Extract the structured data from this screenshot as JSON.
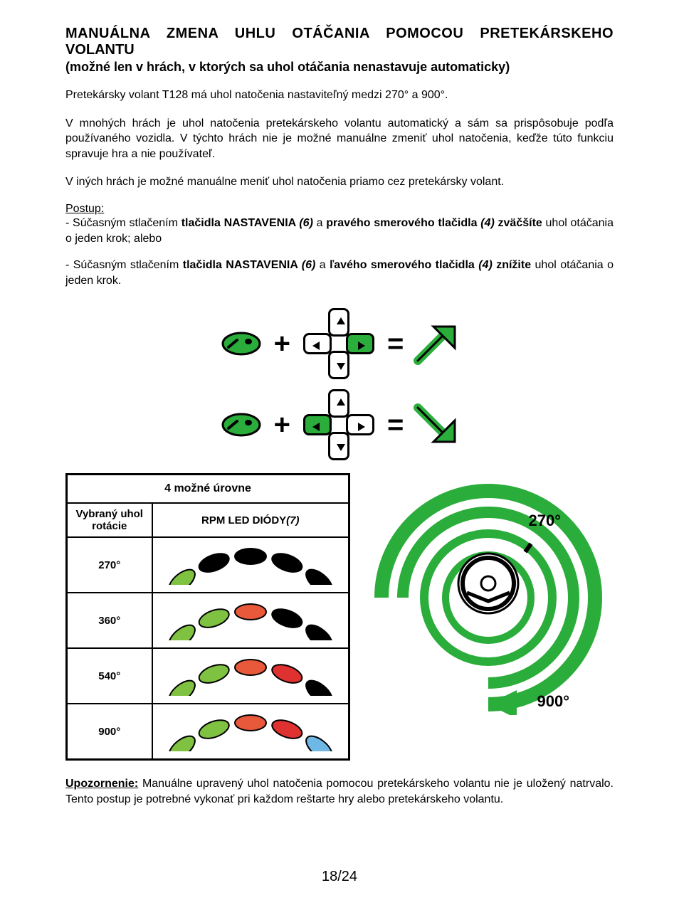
{
  "title_line1": "MANUÁLNA ZMENA UHLU OTÁČANIA POMOCOU PRETEKÁRSKEHO",
  "title_line2": "VOLANTU",
  "subtitle": "(možné len v hrách, v ktorých sa uhol otáčania nenastavuje automaticky)",
  "para1": "Pretekársky volant T128 má uhol natočenia nastaviteľný medzi 270° a 900°.",
  "para2": "V mnohých hrách je uhol natočenia pretekárskeho volantu automatický a sám sa prispôsobuje podľa používaného vozidla. V týchto hrách nie je možné manuálne zmeniť uhol natočenia, keďže túto funkciu spravuje hra a nie používateľ.",
  "para3": "V iných hrách je možné manuálne meniť uhol natočenia priamo cez pretekársky volant.",
  "postup_label": "Postup:",
  "step1_pre": "- Súčasným stlačením ",
  "step1_b1": "tlačidla NASTAVENIA ",
  "step1_i1": "(6)",
  "step1_mid": " a ",
  "step1_b2": "pravého smerového tlačidla ",
  "step1_i2": "(4)",
  "step1_b3": " zväčšíte",
  "step1_post": " uhol otáčania o jeden krok; alebo",
  "step2_pre": "- Súčasným stlačením ",
  "step2_b1": "tlačidla NASTAVENIA ",
  "step2_i1": "(6)",
  "step2_mid": " a ",
  "step2_b2": "ľavého smerového tlačidla ",
  "step2_i2": "(4)",
  "step2_b3": " znížite",
  "step2_post": " uhol otáčania o jeden krok.",
  "table": {
    "header_merged": "4 možné úrovne",
    "col1": "Vybraný uhol rotácie",
    "col2_a": "RPM LED DIÓDY",
    "col2_b": "(7)",
    "rows": [
      {
        "angle": "270°",
        "leds": [
          "#7fc241",
          "#000000",
          "#000000",
          "#000000",
          "#000000"
        ]
      },
      {
        "angle": "360°",
        "leds": [
          "#7fc241",
          "#7fc241",
          "#e8583b",
          "#000000",
          "#000000"
        ]
      },
      {
        "angle": "540°",
        "leds": [
          "#7fc241",
          "#7fc241",
          "#e8583b",
          "#e03131",
          "#000000"
        ]
      },
      {
        "angle": "900°",
        "leds": [
          "#7fc241",
          "#7fc241",
          "#e8583b",
          "#e03131",
          "#6fb8e6"
        ]
      }
    ]
  },
  "spiral": {
    "label_top": "270°",
    "label_bottom": "900°",
    "color": "#2aad3a"
  },
  "colors": {
    "green": "#2aad3a",
    "green_light": "#7fc241",
    "orange": "#e8583b",
    "red": "#e03131",
    "blue": "#6fb8e6",
    "black": "#000000"
  },
  "warning_label": "Upozornenie:",
  "warning_text": " Manuálne upravený uhol natočenia pomocou pretekárskeho volantu nie je uložený natrvalo. Tento postup je potrebné vykonať pri každom reštarte hry alebo pretekárskeho volantu.",
  "page_number": "18/24"
}
